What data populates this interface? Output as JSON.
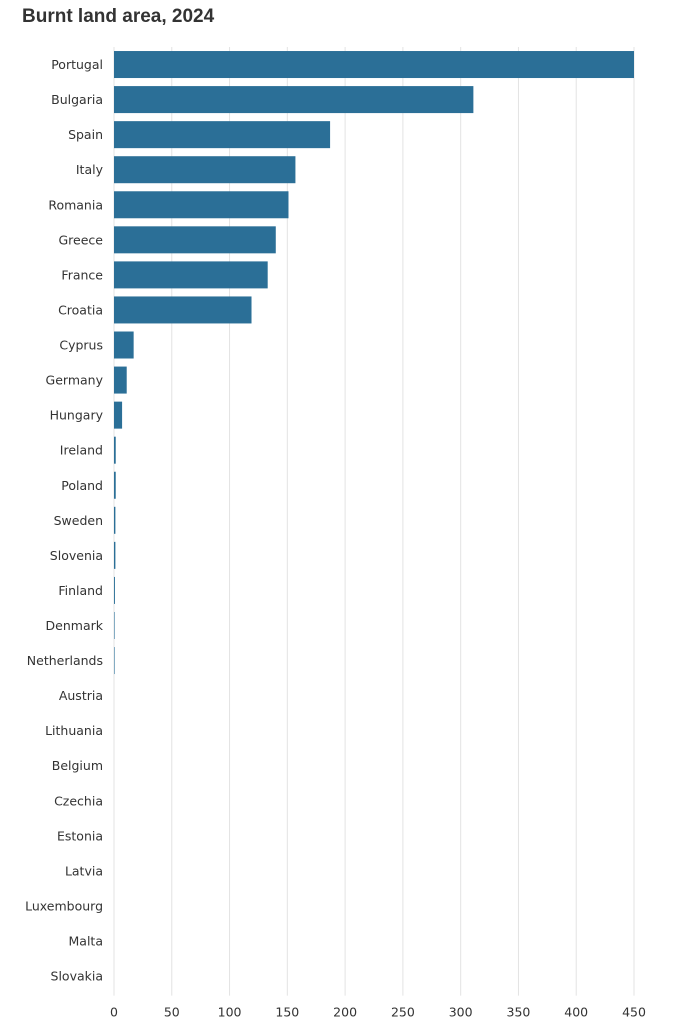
{
  "chart_data": {
    "type": "bar",
    "orientation": "horizontal",
    "title": "Burnt land area, 2024",
    "categories": [
      "Portugal",
      "Bulgaria",
      "Spain",
      "Italy",
      "Romania",
      "Greece",
      "France",
      "Croatia",
      "Cyprus",
      "Germany",
      "Hungary",
      "Ireland",
      "Poland",
      "Sweden",
      "Slovenia",
      "Finland",
      "Denmark",
      "Netherlands",
      "Austria",
      "Lithuania",
      "Belgium",
      "Czechia",
      "Estonia",
      "Latvia",
      "Luxembourg",
      "Malta",
      "Slovakia"
    ],
    "values": [
      450,
      311,
      187,
      157,
      151,
      140,
      133,
      119,
      17,
      11,
      7,
      1.5,
      1.5,
      1.2,
      1.2,
      0.8,
      0.5,
      0.5,
      0,
      0,
      0,
      0,
      0,
      0,
      0,
      0,
      0
    ],
    "xlim": [
      0,
      450
    ],
    "xticks": [
      0,
      50,
      100,
      150,
      200,
      250,
      300,
      350,
      400,
      450
    ],
    "xlabel": "",
    "ylabel": "",
    "grid": "vertical",
    "legend": "none",
    "bar_color": "#2b6f97"
  }
}
